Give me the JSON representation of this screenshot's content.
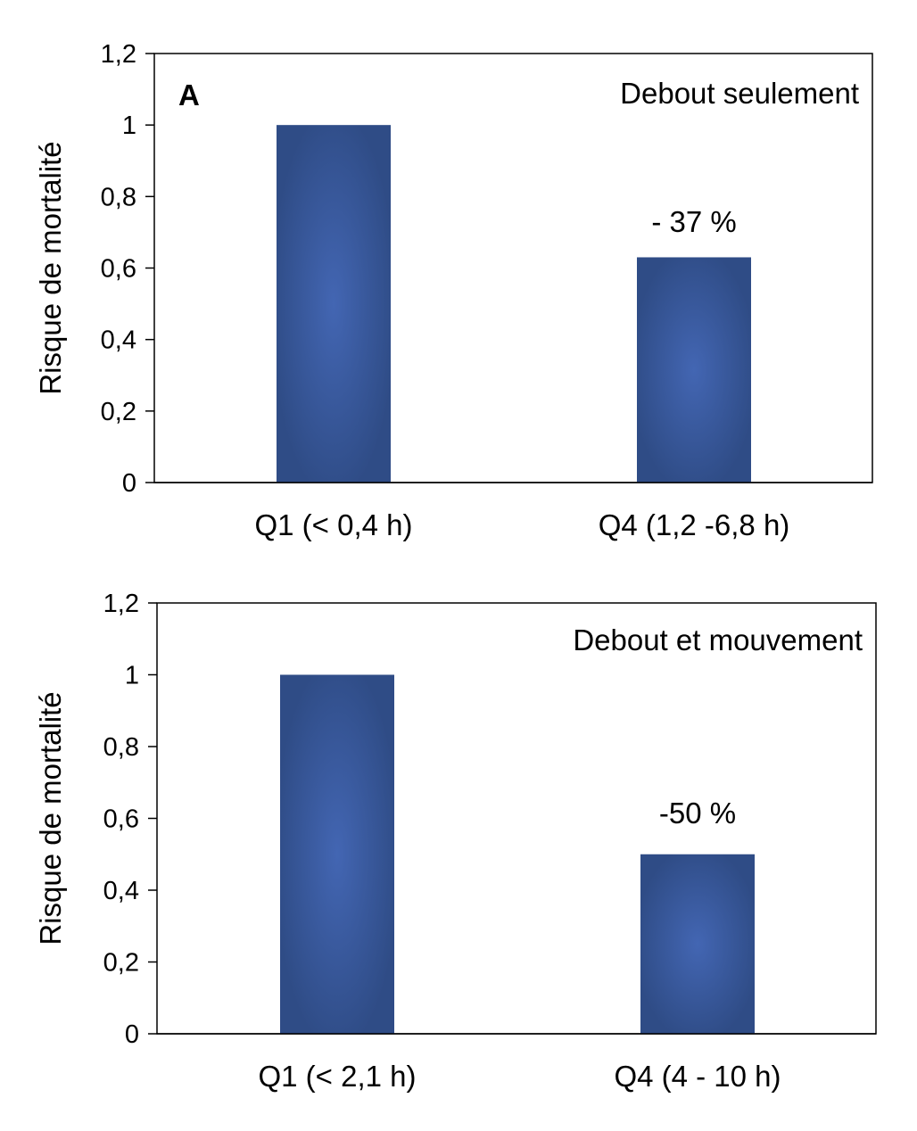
{
  "chart_data": [
    {
      "type": "bar",
      "panel_letter": "A",
      "title": "Debout seulement",
      "ylabel": "Risque de mortalité",
      "xlabel": "",
      "ylim": [
        0,
        1.2
      ],
      "yticks": [
        "0",
        "0,2",
        "0,4",
        "0,6",
        "0,8",
        "1",
        "1,2"
      ],
      "categories": [
        "Q1 (< 0,4 h)",
        "Q4 (1,2 -6,8 h)"
      ],
      "values": [
        1.0,
        0.63
      ],
      "data_labels": [
        "",
        "- 37 %"
      ],
      "bar_color": "#3f5fa6",
      "grid": false,
      "legend": "none"
    },
    {
      "type": "bar",
      "panel_letter": "",
      "title": "Debout et mouvement",
      "ylabel": "Risque de mortalité",
      "xlabel": "",
      "ylim": [
        0,
        1.2
      ],
      "yticks": [
        "0",
        "0,2",
        "0,4",
        "0,6",
        "0,8",
        "1",
        "1,2"
      ],
      "categories": [
        "Q1 (< 2,1 h)",
        "Q4 (4 - 10 h)"
      ],
      "values": [
        1.0,
        0.5
      ],
      "data_labels": [
        "",
        "-50 %"
      ],
      "bar_color": "#3f5fa6",
      "grid": false,
      "legend": "none"
    }
  ]
}
